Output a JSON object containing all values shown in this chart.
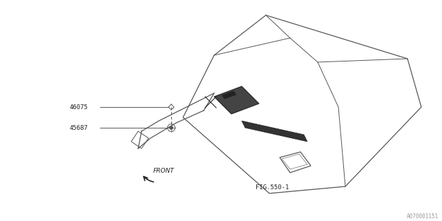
{
  "bg_color": "#ffffff",
  "fig_width": 6.4,
  "fig_height": 3.2,
  "label_46075": "46075",
  "label_45687": "45687",
  "front_label": "FRONT",
  "fig_ref": "FIG.550-1",
  "watermark": "A070001151",
  "line_color": "#555555",
  "dark_color": "#222222",
  "lw_main": 0.9,
  "lw_thin": 0.7
}
